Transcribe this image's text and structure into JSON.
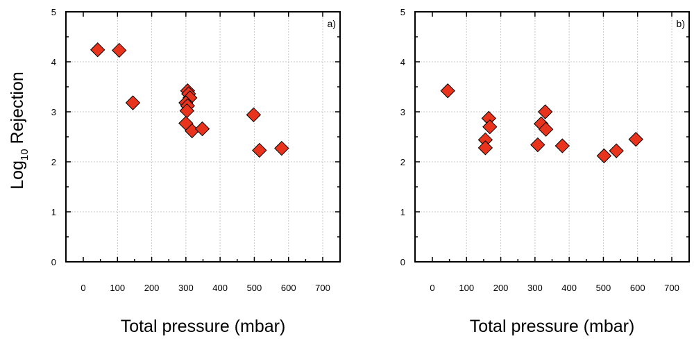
{
  "chart_data": [
    {
      "type": "scatter",
      "panel_label": "a)",
      "xlabel": "Total pressure (mbar)",
      "ylabel_main": "Log",
      "ylabel_sub": "10",
      "ylabel_rest": " Rejection",
      "xlim": [
        0,
        700
      ],
      "ylim": [
        0,
        5
      ],
      "x_ticks": [
        0,
        100,
        200,
        300,
        400,
        500,
        600,
        700
      ],
      "y_ticks": [
        0,
        1,
        2,
        3,
        4,
        5
      ],
      "grid": true,
      "marker": {
        "shape": "diamond",
        "fill": "#e8341c",
        "stroke": "#000000"
      },
      "series": [
        {
          "points": [
            {
              "x": 42,
              "y": 4.24
            },
            {
              "x": 105,
              "y": 4.23
            },
            {
              "x": 145,
              "y": 3.18
            },
            {
              "x": 305,
              "y": 3.42
            },
            {
              "x": 308,
              "y": 3.36
            },
            {
              "x": 312,
              "y": 3.28
            },
            {
              "x": 300,
              "y": 3.18
            },
            {
              "x": 305,
              "y": 3.12
            },
            {
              "x": 303,
              "y": 3.02
            },
            {
              "x": 300,
              "y": 2.77
            },
            {
              "x": 318,
              "y": 2.62
            },
            {
              "x": 348,
              "y": 2.66
            },
            {
              "x": 498,
              "y": 2.94
            },
            {
              "x": 515,
              "y": 2.23
            },
            {
              "x": 580,
              "y": 2.27
            }
          ]
        }
      ]
    },
    {
      "type": "scatter",
      "panel_label": "b)",
      "xlabel": "Total pressure (mbar)",
      "xlim": [
        0,
        700
      ],
      "ylim": [
        0,
        5
      ],
      "x_ticks": [
        0,
        100,
        200,
        300,
        400,
        500,
        600,
        700
      ],
      "y_ticks": [
        0,
        1,
        2,
        3,
        4,
        5
      ],
      "grid": true,
      "marker": {
        "shape": "diamond",
        "fill": "#e8341c",
        "stroke": "#000000"
      },
      "series": [
        {
          "points": [
            {
              "x": 45,
              "y": 3.42
            },
            {
              "x": 165,
              "y": 2.87
            },
            {
              "x": 168,
              "y": 2.7
            },
            {
              "x": 155,
              "y": 2.44
            },
            {
              "x": 155,
              "y": 2.28
            },
            {
              "x": 330,
              "y": 3.0
            },
            {
              "x": 318,
              "y": 2.76
            },
            {
              "x": 332,
              "y": 2.65
            },
            {
              "x": 308,
              "y": 2.34
            },
            {
              "x": 380,
              "y": 2.32
            },
            {
              "x": 502,
              "y": 2.12
            },
            {
              "x": 538,
              "y": 2.22
            },
            {
              "x": 595,
              "y": 2.45
            }
          ]
        }
      ]
    }
  ]
}
